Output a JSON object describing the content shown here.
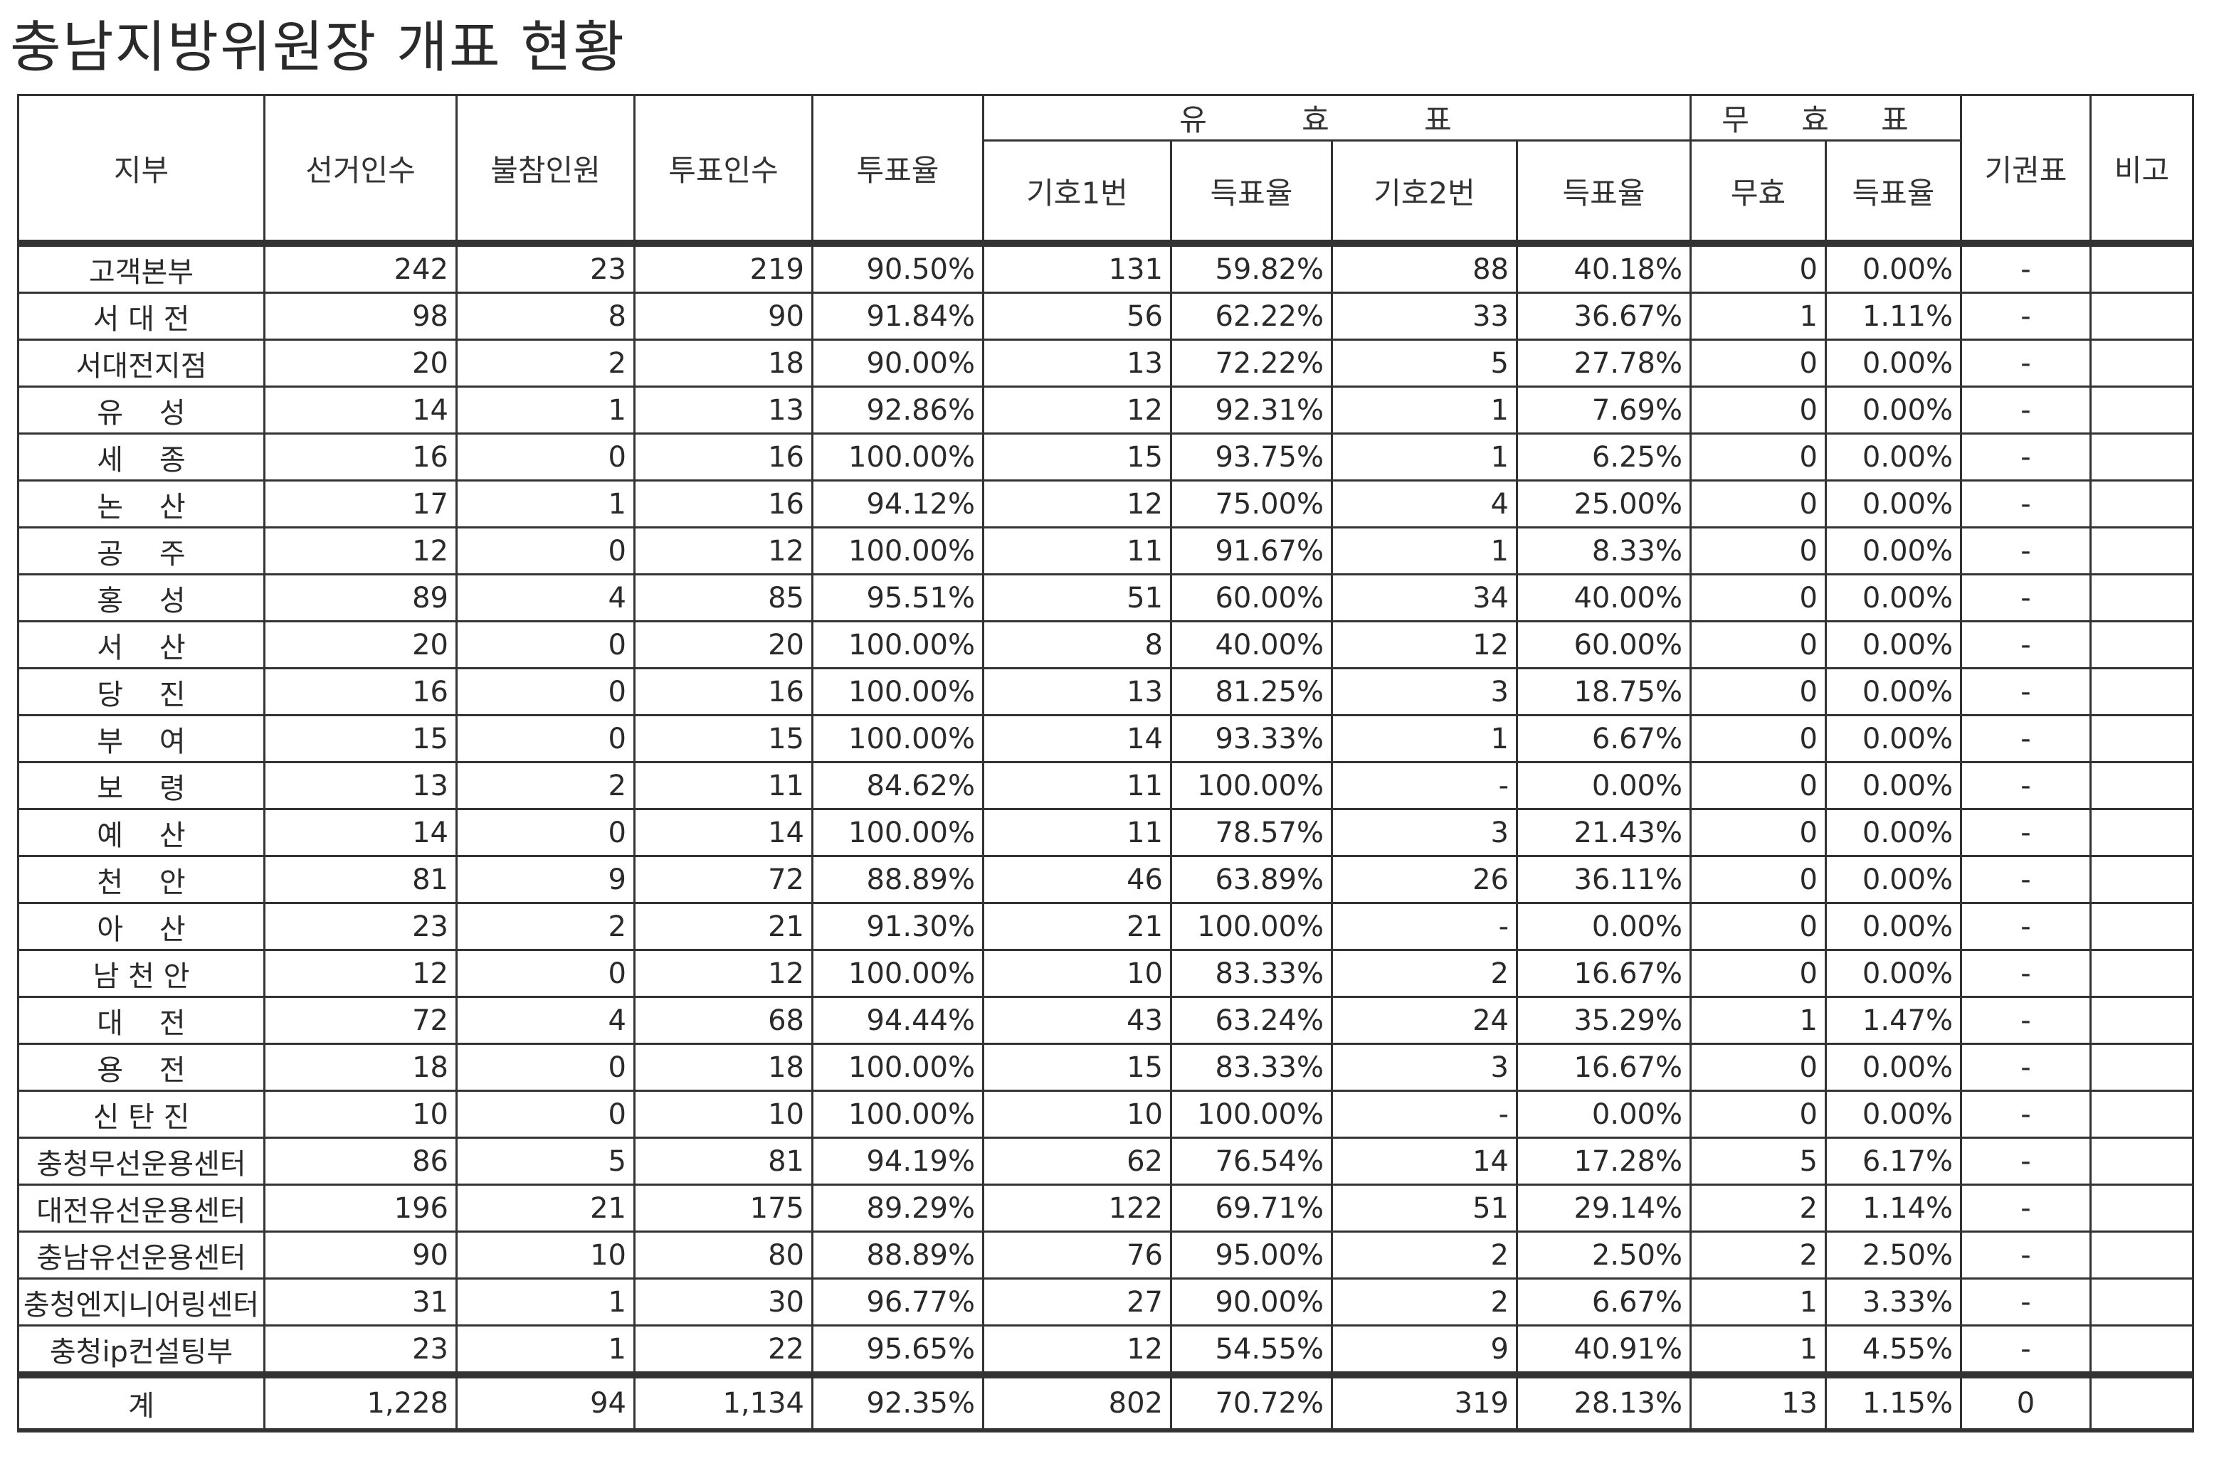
{
  "title": "충남지방위원장 개표 현황",
  "header": {
    "branch": "지부",
    "electors": "선거인수",
    "absent": "불참인원",
    "voters": "투표인수",
    "turnout": "투표율",
    "valid_group": "유 효 표",
    "invalid_group": "무 효 표",
    "cand1": "기호1번",
    "cand1_rate": "득표율",
    "cand2": "기호2번",
    "cand2_rate": "득표율",
    "invalid": "무효",
    "invalid_rate": "득표율",
    "abstain": "기권표",
    "note": "비고"
  },
  "rows": [
    [
      "고객본부",
      "242",
      "23",
      "219",
      "90.50%",
      "131",
      "59.82%",
      "88",
      "40.18%",
      "0",
      "0.00%",
      "-",
      ""
    ],
    [
      "서 대 전",
      "98",
      "8",
      "90",
      "91.84%",
      "56",
      "62.22%",
      "33",
      "36.67%",
      "1",
      "1.11%",
      "-",
      ""
    ],
    [
      "서대전지점",
      "20",
      "2",
      "18",
      "90.00%",
      "13",
      "72.22%",
      "5",
      "27.78%",
      "0",
      "0.00%",
      "-",
      ""
    ],
    [
      "유    성",
      "14",
      "1",
      "13",
      "92.86%",
      "12",
      "92.31%",
      "1",
      "7.69%",
      "0",
      "0.00%",
      "-",
      ""
    ],
    [
      "세    종",
      "16",
      "0",
      "16",
      "100.00%",
      "15",
      "93.75%",
      "1",
      "6.25%",
      "0",
      "0.00%",
      "-",
      ""
    ],
    [
      "논    산",
      "17",
      "1",
      "16",
      "94.12%",
      "12",
      "75.00%",
      "4",
      "25.00%",
      "0",
      "0.00%",
      "-",
      ""
    ],
    [
      "공    주",
      "12",
      "0",
      "12",
      "100.00%",
      "11",
      "91.67%",
      "1",
      "8.33%",
      "0",
      "0.00%",
      "-",
      ""
    ],
    [
      "홍    성",
      "89",
      "4",
      "85",
      "95.51%",
      "51",
      "60.00%",
      "34",
      "40.00%",
      "0",
      "0.00%",
      "-",
      ""
    ],
    [
      "서    산",
      "20",
      "0",
      "20",
      "100.00%",
      "8",
      "40.00%",
      "12",
      "60.00%",
      "0",
      "0.00%",
      "-",
      ""
    ],
    [
      "당    진",
      "16",
      "0",
      "16",
      "100.00%",
      "13",
      "81.25%",
      "3",
      "18.75%",
      "0",
      "0.00%",
      "-",
      ""
    ],
    [
      "부    여",
      "15",
      "0",
      "15",
      "100.00%",
      "14",
      "93.33%",
      "1",
      "6.67%",
      "0",
      "0.00%",
      "-",
      ""
    ],
    [
      "보    령",
      "13",
      "2",
      "11",
      "84.62%",
      "11",
      "100.00%",
      "-",
      "0.00%",
      "0",
      "0.00%",
      "-",
      ""
    ],
    [
      "예    산",
      "14",
      "0",
      "14",
      "100.00%",
      "11",
      "78.57%",
      "3",
      "21.43%",
      "0",
      "0.00%",
      "-",
      ""
    ],
    [
      "천    안",
      "81",
      "9",
      "72",
      "88.89%",
      "46",
      "63.89%",
      "26",
      "36.11%",
      "0",
      "0.00%",
      "-",
      ""
    ],
    [
      "아    산",
      "23",
      "2",
      "21",
      "91.30%",
      "21",
      "100.00%",
      "-",
      "0.00%",
      "0",
      "0.00%",
      "-",
      ""
    ],
    [
      "남 천 안",
      "12",
      "0",
      "12",
      "100.00%",
      "10",
      "83.33%",
      "2",
      "16.67%",
      "0",
      "0.00%",
      "-",
      ""
    ],
    [
      "대    전",
      "72",
      "4",
      "68",
      "94.44%",
      "43",
      "63.24%",
      "24",
      "35.29%",
      "1",
      "1.47%",
      "-",
      ""
    ],
    [
      "용    전",
      "18",
      "0",
      "18",
      "100.00%",
      "15",
      "83.33%",
      "3",
      "16.67%",
      "0",
      "0.00%",
      "-",
      ""
    ],
    [
      "신 탄 진",
      "10",
      "0",
      "10",
      "100.00%",
      "10",
      "100.00%",
      "-",
      "0.00%",
      "0",
      "0.00%",
      "-",
      ""
    ],
    [
      "충청무선운용센터",
      "86",
      "5",
      "81",
      "94.19%",
      "62",
      "76.54%",
      "14",
      "17.28%",
      "5",
      "6.17%",
      "-",
      ""
    ],
    [
      "대전유선운용센터",
      "196",
      "21",
      "175",
      "89.29%",
      "122",
      "69.71%",
      "51",
      "29.14%",
      "2",
      "1.14%",
      "-",
      ""
    ],
    [
      "충남유선운용센터",
      "90",
      "10",
      "80",
      "88.89%",
      "76",
      "95.00%",
      "2",
      "2.50%",
      "2",
      "2.50%",
      "-",
      ""
    ],
    [
      "충청엔지니어링센터",
      "31",
      "1",
      "30",
      "96.77%",
      "27",
      "90.00%",
      "2",
      "6.67%",
      "1",
      "3.33%",
      "-",
      ""
    ],
    [
      "충청ip컨설팅부",
      "23",
      "1",
      "22",
      "95.65%",
      "12",
      "54.55%",
      "9",
      "40.91%",
      "1",
      "4.55%",
      "-",
      ""
    ]
  ],
  "total": [
    "계",
    "1,228",
    "94",
    "1,134",
    "92.35%",
    "802",
    "70.72%",
    "319",
    "28.13%",
    "13",
    "1.15%",
    "0",
    ""
  ]
}
